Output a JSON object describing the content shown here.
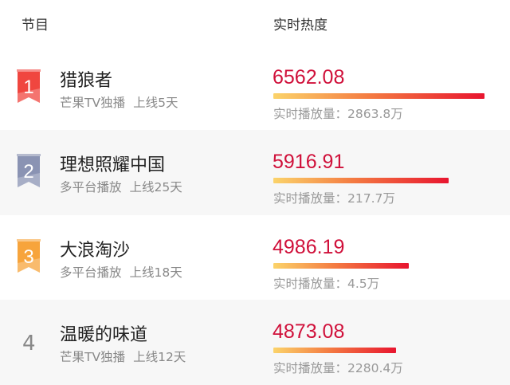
{
  "header": {
    "col_program": "节目",
    "col_heat": "实时热度"
  },
  "rows": [
    {
      "rank": "1",
      "title": "猎狼者",
      "platform": "芒果TV独播",
      "days": "上线5天",
      "score": "6562.08",
      "bar_fraction": 1.0,
      "plays_label": "实时播放量：",
      "plays": "2863.8万",
      "badge_color": "#f0463f"
    },
    {
      "rank": "2",
      "title": "理想照耀中国",
      "platform": "多平台播放",
      "days": "上线25天",
      "score": "5916.91",
      "bar_fraction": 0.83,
      "plays_label": "实时播放量：",
      "plays": "217.7万",
      "badge_color": "#8a93b3"
    },
    {
      "rank": "3",
      "title": "大浪淘沙",
      "platform": "多平台播放",
      "days": "上线18天",
      "score": "4986.19",
      "bar_fraction": 0.64,
      "plays_label": "实时播放量：",
      "plays": "4.5万",
      "badge_color": "#f7a43c"
    },
    {
      "rank": "4",
      "title": "温暖的味道",
      "platform": "芒果TV独播",
      "days": "上线12天",
      "score": "4873.08",
      "bar_fraction": 0.58,
      "plays_label": "实时播放量：",
      "plays": "2280.4万"
    }
  ]
}
